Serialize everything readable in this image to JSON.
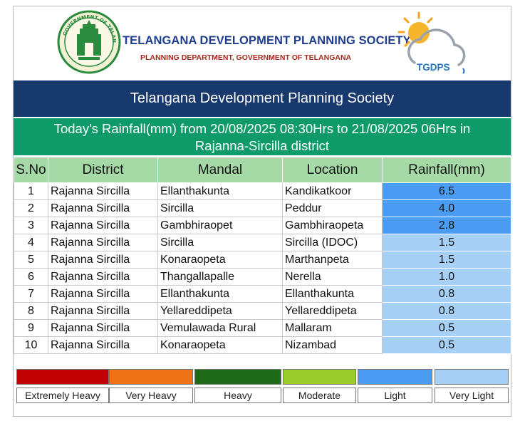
{
  "header": {
    "org_name": "TELANGANA DEVELOPMENT PLANNING SOCIETY",
    "org_sub": "PLANNING DEPARTMENT, GOVERNMENT OF TELANGANA",
    "logo_text": "TGDPS",
    "seal_text": "GOVERNMENT OF TELANGANA"
  },
  "banner": {
    "title": "Telangana Development Planning Society"
  },
  "report": {
    "line1": "Today's Rainfall(mm) from 20/08/2025 08:30Hrs to 21/08/2025 06Hrs in",
    "line2": "Rajanna-Sircilla district"
  },
  "table": {
    "headers": [
      "S.No",
      "District",
      "Mandal",
      "Location",
      "Rainfall(mm)"
    ],
    "rows": [
      {
        "sno": "1",
        "district": "Rajanna Sircilla",
        "mandal": "Ellanthakunta",
        "location": "Kandikatkoor",
        "rainfall": "6.5",
        "category": "Light"
      },
      {
        "sno": "2",
        "district": "Rajanna Sircilla",
        "mandal": "Sircilla",
        "location": "Peddur",
        "rainfall": "4.0",
        "category": "Light"
      },
      {
        "sno": "3",
        "district": "Rajanna Sircilla",
        "mandal": "Gambhiraopet",
        "location": "Gambhiraopeta",
        "rainfall": "2.8",
        "category": "Light"
      },
      {
        "sno": "4",
        "district": "Rajanna Sircilla",
        "mandal": "Sircilla",
        "location": "Sircilla (IDOC)",
        "rainfall": "1.5",
        "category": "Very Light"
      },
      {
        "sno": "5",
        "district": "Rajanna Sircilla",
        "mandal": "Konaraopeta",
        "location": "Marthanpeta",
        "rainfall": "1.5",
        "category": "Very Light"
      },
      {
        "sno": "6",
        "district": "Rajanna Sircilla",
        "mandal": "Thangallapalle",
        "location": "Nerella",
        "rainfall": "1.0",
        "category": "Very Light"
      },
      {
        "sno": "7",
        "district": "Rajanna Sircilla",
        "mandal": "Ellanthakunta",
        "location": "Ellanthakunta",
        "rainfall": "0.8",
        "category": "Very Light"
      },
      {
        "sno": "8",
        "district": "Rajanna Sircilla",
        "mandal": "Yellareddipeta",
        "location": "Yellareddipeta",
        "rainfall": "0.8",
        "category": "Very Light"
      },
      {
        "sno": "9",
        "district": "Rajanna Sircilla",
        "mandal": "Vemulawada Rural",
        "location": "Mallaram",
        "rainfall": "0.5",
        "category": "Very Light"
      },
      {
        "sno": "10",
        "district": "Rajanna Sircilla",
        "mandal": "Konaraopeta",
        "location": "Nizambad",
        "rainfall": "0.5",
        "category": "Very Light"
      }
    ]
  },
  "legend": [
    {
      "label": "Extremely Heavy",
      "color": "#c00000"
    },
    {
      "label": "Very Heavy",
      "color": "#f07318"
    },
    {
      "label": "Heavy",
      "color": "#1d6a19"
    },
    {
      "label": "Moderate",
      "color": "#9bce2d"
    },
    {
      "label": "Light",
      "color": "#4b9cf2"
    },
    {
      "label": "Very Light",
      "color": "#a7d0f7"
    }
  ]
}
